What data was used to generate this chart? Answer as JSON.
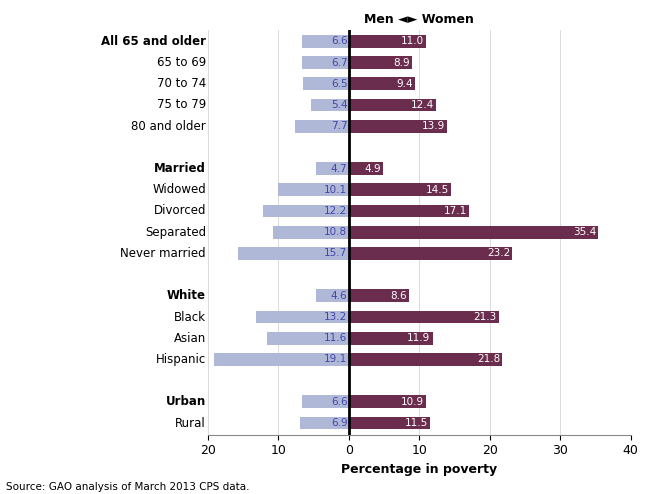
{
  "categories": [
    "All 65 and older",
    "65 to 69",
    "70 to 74",
    "75 to 79",
    "80 and older",
    "Married",
    "Widowed",
    "Divorced",
    "Separated",
    "Never married",
    "White",
    "Black",
    "Asian",
    "Hispanic",
    "Urban",
    "Rural"
  ],
  "men_values": [
    6.6,
    6.7,
    6.5,
    5.4,
    7.7,
    4.7,
    10.1,
    12.2,
    10.8,
    15.7,
    4.6,
    13.2,
    11.6,
    19.1,
    6.6,
    6.9
  ],
  "women_values": [
    11.0,
    8.9,
    9.4,
    12.4,
    13.9,
    4.9,
    14.5,
    17.1,
    35.4,
    23.2,
    8.6,
    21.3,
    11.9,
    21.8,
    10.9,
    11.5
  ],
  "men_color": "#b0b8d8",
  "women_color": "#6b2d4e",
  "men_text_color": "#4444aa",
  "women_text_color": "#ffffff",
  "group_gaps": [
    0,
    1,
    2,
    3,
    4,
    6,
    7,
    8,
    9,
    10,
    12,
    13,
    14,
    15,
    17,
    18
  ],
  "title": "Men ◄► Women",
  "xlabel": "Percentage in poverty",
  "source": "Source: GAO analysis of March 2013 CPS data.",
  "xlim_left": -20,
  "xlim_right": 40,
  "xticks": [
    -20,
    -10,
    0,
    10,
    20,
    30,
    40
  ],
  "xticklabels": [
    "20",
    "10",
    "0",
    "10",
    "20",
    "30",
    "40"
  ],
  "background_color": "#ffffff",
  "grid_color": "#cccccc",
  "bold_categories": [
    "All 65 and older",
    "Married",
    "White",
    "Urban"
  ]
}
